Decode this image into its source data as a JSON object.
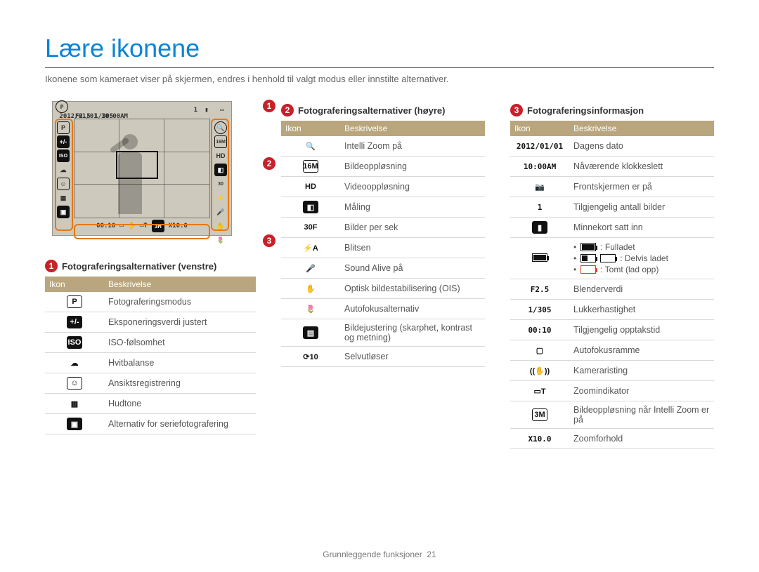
{
  "page": {
    "title": "Lære ikonene",
    "subtitle": "Ikonene som kameraet viser på skjermen, endres i henhold til valgt modus eller innstilte alternativer.",
    "footer_label": "Grunnleggende funksjoner",
    "footer_page": "21"
  },
  "screen": {
    "top_datetime": "2012/01/01 10:00AM",
    "top_count": "1",
    "top_line2": "F2.5 1/305",
    "bottom_time": "00:10",
    "bottom_zoom": "X10.0"
  },
  "callouts": {
    "c1": "1",
    "c2": "2",
    "c3": "3"
  },
  "table_headers": {
    "icon": "Ikon",
    "desc": "Beskrivelse"
  },
  "sec1": {
    "title": "Fotograferingsalternativer (venstre)",
    "rows": [
      {
        "g": "P",
        "d": "Fotograferingsmodus"
      },
      {
        "g": "+/-",
        "d": "Eksponeringsverdi justert"
      },
      {
        "g": "ISO",
        "d": "ISO-følsomhet"
      },
      {
        "g": "☁",
        "d": "Hvitbalanse"
      },
      {
        "g": "☺",
        "d": "Ansiktsregistrering"
      },
      {
        "g": "▦",
        "d": "Hudtone"
      },
      {
        "g": "▣",
        "d": "Alternativ for seriefotografering"
      }
    ]
  },
  "sec2": {
    "title": "Fotograferingsalternativer (høyre)",
    "rows": [
      {
        "g": "🔍",
        "d": "Intelli Zoom på"
      },
      {
        "g": "16M",
        "d": "Bildeoppløsning"
      },
      {
        "g": "HD",
        "d": "Videooppløsning"
      },
      {
        "g": "◧",
        "d": "Måling"
      },
      {
        "g": "30F",
        "d": "Bilder per sek"
      },
      {
        "g": "⚡A",
        "d": "Blitsen"
      },
      {
        "g": "🎤",
        "d": "Sound Alive på"
      },
      {
        "g": "✋",
        "d": "Optisk bildestabilisering (OIS)"
      },
      {
        "g": "🌷",
        "d": "Autofokusalternativ"
      },
      {
        "g": "▤",
        "d": "Bildejustering (skarphet, kontrast og metning)"
      },
      {
        "g": "⟳10",
        "d": "Selvutløser"
      }
    ]
  },
  "sec3": {
    "title": "Fotograferingsinformasjon",
    "rows": [
      {
        "g": "2012/01/01",
        "txt": true,
        "d": "Dagens dato"
      },
      {
        "g": "10:00AM",
        "txt": true,
        "d": "Nåværende klokkeslett"
      },
      {
        "g": "📷",
        "d": "Frontskjermen er på"
      },
      {
        "g": "1",
        "txt": true,
        "d": "Tilgjengelig antall bilder"
      },
      {
        "g": "▮",
        "d": "Minnekort satt inn"
      },
      {
        "g": "BATT",
        "d": ""
      },
      {
        "g": "F2.5",
        "txt": true,
        "d": "Blenderverdi"
      },
      {
        "g": "1/305",
        "txt": true,
        "d": "Lukkerhastighet"
      },
      {
        "g": "00:10",
        "txt": true,
        "d": "Tilgjengelig opptakstid"
      },
      {
        "g": "▢",
        "d": "Autofokusramme"
      },
      {
        "g": "((✋))",
        "d": "Kameraristing"
      },
      {
        "g": "▭T",
        "d": "Zoomindikator"
      },
      {
        "g": "3M",
        "d": "Bildeoppløsning når Intelli Zoom er på"
      },
      {
        "g": "X10.0",
        "txt": true,
        "d": "Zoomforhold"
      }
    ]
  },
  "battery": {
    "full": ": Fulladet",
    "partial": ": Delvis ladet",
    "empty": ": Tomt (lad opp)"
  }
}
